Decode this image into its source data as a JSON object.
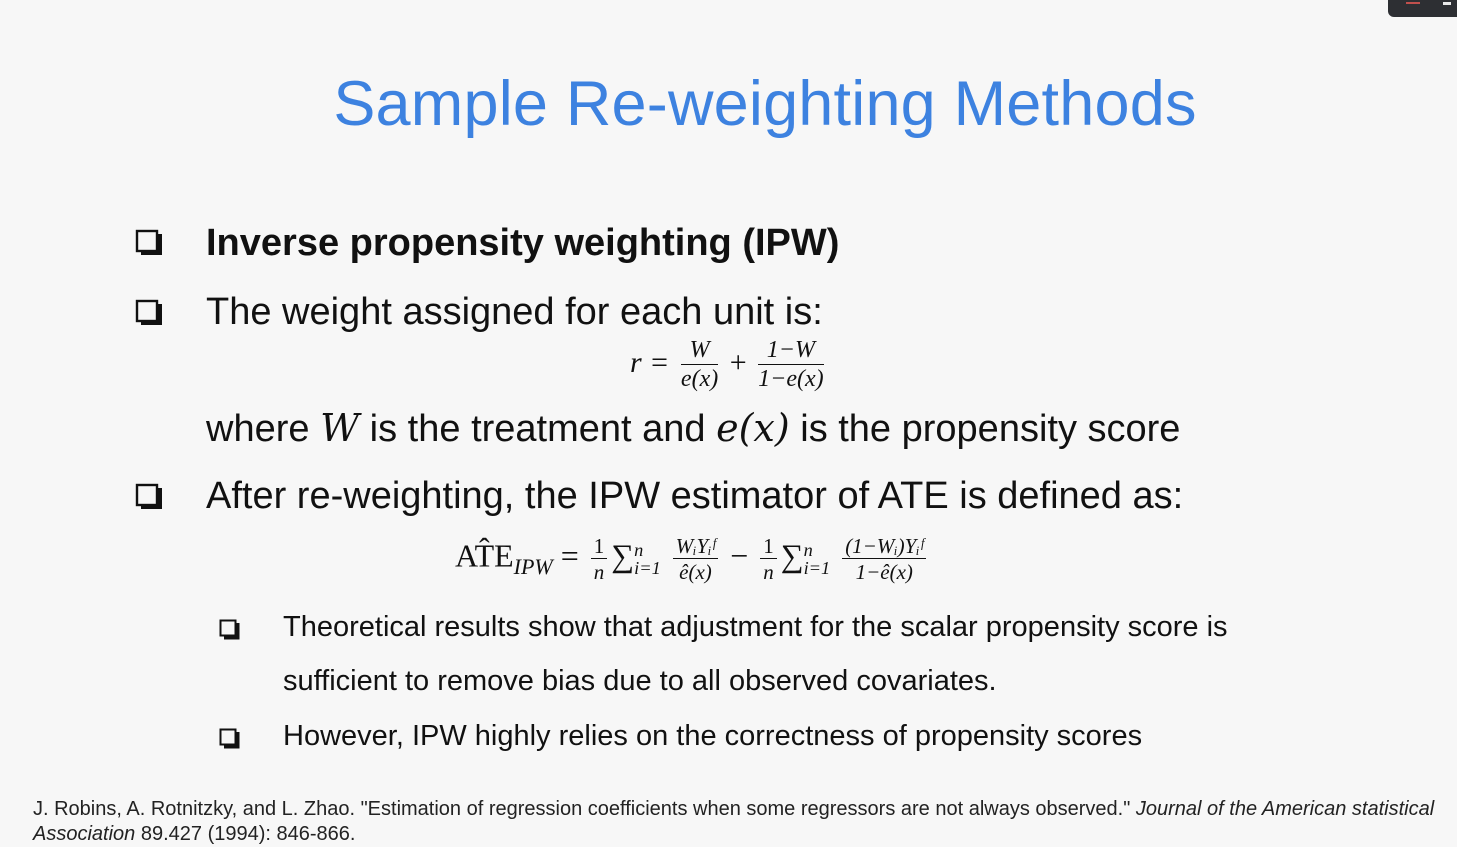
{
  "slide": {
    "title": "Sample Re-weighting Methods",
    "bullets": [
      {
        "text": "Inverse propensity weighting (IPW)"
      },
      {
        "text": "The weight assigned for each unit is:"
      },
      {
        "text": "After re-weighting, the IPW estimator of ATE is defined as:"
      }
    ],
    "where_line": {
      "pre": "where ",
      "var_w": "W",
      "mid": " is the treatment and ",
      "var_e": "e(x)",
      "post": " is the propensity score"
    },
    "sub_bullets": [
      {
        "line1": "Theoretical results show that adjustment for the scalar propensity score is",
        "line2": "sufficient to remove bias due to all observed covariates."
      },
      {
        "line1": "However, IPW highly relies on the correctness of propensity scores"
      }
    ]
  },
  "equations": {
    "weight": {
      "lhs": "r =",
      "f1_num": "W",
      "f1_den": "e(x)",
      "op": "+",
      "f2_num": "1−W",
      "f2_den": "1−e(x)"
    },
    "ate": {
      "lhs": "AT̂E",
      "lhs_sub": "IPW",
      "eq": "=",
      "a_num": "1",
      "a_den": "n",
      "sum1": "∑",
      "sum1_sup": "n",
      "sum1_sub": "i=1",
      "b_num": "WᵢYᵢᶠ",
      "b_den": "ê(x)",
      "minus": "−",
      "c_num": "1",
      "c_den": "n",
      "sum2": "∑",
      "sum2_sup": "n",
      "sum2_sub": "i=1",
      "d_num": "(1−Wᵢ)Yᵢᶠ",
      "d_den": "1−ê(x)"
    }
  },
  "reference": {
    "authors_title": "J. Robins, A. Rotnitzky, and L. Zhao. \"Estimation of regression coefficients when some regressors are not always observed.\" ",
    "journal": "Journal of the American statistical Association",
    "details": " 89.427 (1994): 846-866."
  },
  "colors": {
    "title": "#3d82e0",
    "text": "#111111",
    "background": "#f7f7f7"
  },
  "icons": [
    "checkbox-bullet-icon"
  ]
}
